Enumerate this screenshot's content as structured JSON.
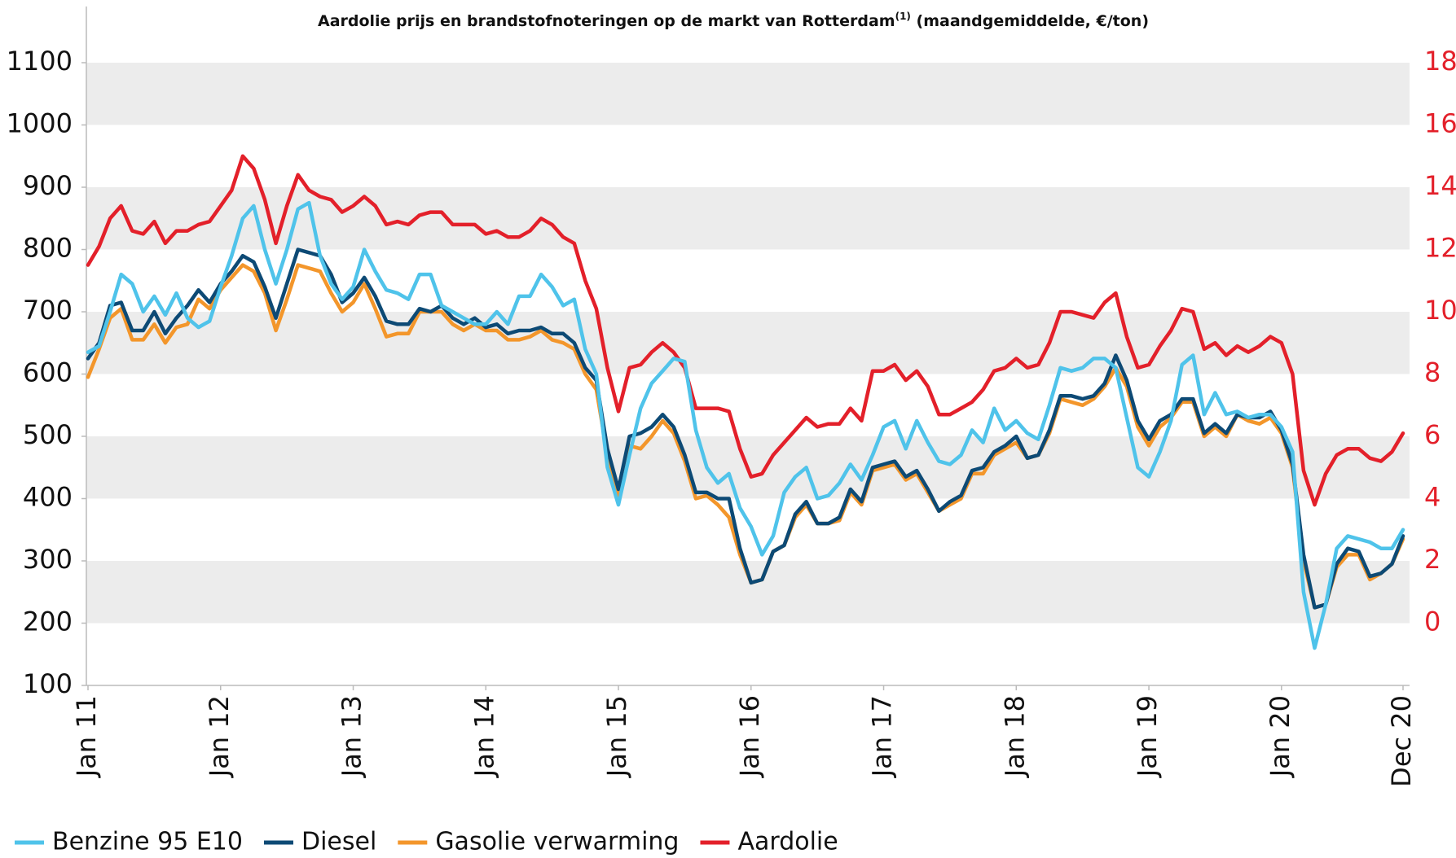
{
  "chart_data": {
    "type": "line",
    "title": "Aardolie prijs en brandstofnoteringen op de markt van Rotterdam",
    "title_note": "(1)",
    "title_suffix": " (maandgemiddelde, €/ton)",
    "categories": [
      "Jan 11",
      null,
      null,
      null,
      null,
      null,
      null,
      null,
      null,
      null,
      null,
      null,
      "Jan 12",
      null,
      null,
      null,
      null,
      null,
      null,
      null,
      null,
      null,
      null,
      null,
      "Jan 13",
      null,
      null,
      null,
      null,
      null,
      null,
      null,
      null,
      null,
      null,
      null,
      "Jan 14",
      null,
      null,
      null,
      null,
      null,
      null,
      null,
      null,
      null,
      null,
      null,
      "Jan 15",
      null,
      null,
      null,
      null,
      null,
      null,
      null,
      null,
      null,
      null,
      null,
      "Jan 16",
      null,
      null,
      null,
      null,
      null,
      null,
      null,
      null,
      null,
      null,
      null,
      "Jan 17",
      null,
      null,
      null,
      null,
      null,
      null,
      null,
      null,
      null,
      null,
      null,
      "Jan 18",
      null,
      null,
      null,
      null,
      null,
      null,
      null,
      null,
      null,
      null,
      null,
      "Jan 19",
      null,
      null,
      null,
      null,
      null,
      null,
      null,
      null,
      null,
      null,
      null,
      "Jan 20",
      null,
      null,
      null,
      null,
      null,
      null,
      null,
      null,
      null,
      null,
      "Dec 20"
    ],
    "ylim": [
      100,
      1100
    ],
    "yticks": [
      100,
      200,
      300,
      400,
      500,
      600,
      700,
      800,
      900,
      1000,
      1100
    ],
    "y2lim": [
      -2,
      18
    ],
    "y2ticks": [
      0,
      2,
      4,
      6,
      8,
      10,
      12,
      14,
      16,
      18
    ],
    "y2color": "#e3202a",
    "grid": "bands",
    "legend": "bottom-left",
    "series": [
      {
        "name": "Benzine 95 E10",
        "color": "#4fc3ea",
        "values": [
          635,
          645,
          700,
          760,
          745,
          700,
          725,
          695,
          730,
          690,
          675,
          685,
          740,
          790,
          850,
          870,
          800,
          745,
          800,
          865,
          875,
          790,
          745,
          720,
          740,
          800,
          765,
          735,
          730,
          720,
          760,
          760,
          710,
          700,
          690,
          680,
          680,
          700,
          680,
          725,
          725,
          760,
          740,
          710,
          720,
          640,
          600,
          450,
          390,
          470,
          545,
          585,
          605,
          625,
          620,
          510,
          450,
          425,
          440,
          385,
          355,
          310,
          340,
          410,
          435,
          450,
          400,
          405,
          425,
          455,
          430,
          470,
          515,
          525,
          480,
          525,
          490,
          460,
          455,
          470,
          510,
          490,
          545,
          510,
          525,
          505,
          495,
          550,
          610,
          605,
          610,
          625,
          625,
          610,
          530,
          450,
          435,
          475,
          525,
          615,
          630,
          535,
          570,
          535,
          540,
          530,
          535,
          535,
          515,
          475,
          250,
          160,
          230,
          320,
          340,
          335,
          330,
          320,
          320,
          350
        ]
      },
      {
        "name": "Diesel",
        "color": "#0d4a75",
        "values": [
          625,
          650,
          710,
          715,
          670,
          670,
          700,
          665,
          690,
          710,
          735,
          715,
          745,
          765,
          790,
          780,
          740,
          690,
          745,
          800,
          795,
          790,
          760,
          715,
          730,
          755,
          725,
          685,
          680,
          680,
          705,
          700,
          710,
          690,
          680,
          690,
          675,
          680,
          665,
          670,
          670,
          675,
          665,
          665,
          650,
          610,
          590,
          480,
          415,
          500,
          505,
          515,
          535,
          515,
          470,
          410,
          410,
          400,
          400,
          320,
          265,
          270,
          315,
          325,
          375,
          395,
          360,
          360,
          370,
          415,
          395,
          450,
          455,
          460,
          435,
          445,
          415,
          380,
          395,
          405,
          445,
          450,
          475,
          485,
          500,
          465,
          470,
          510,
          565,
          565,
          560,
          565,
          585,
          630,
          590,
          525,
          495,
          525,
          535,
          560,
          560,
          505,
          520,
          505,
          535,
          530,
          530,
          540,
          510,
          455,
          310,
          225,
          230,
          295,
          320,
          315,
          275,
          280,
          295,
          340
        ]
      },
      {
        "name": "Gasolie verwarming",
        "color": "#f3962b",
        "values": [
          595,
          640,
          690,
          705,
          655,
          655,
          680,
          650,
          675,
          680,
          720,
          705,
          735,
          755,
          775,
          765,
          730,
          670,
          720,
          775,
          770,
          765,
          730,
          700,
          715,
          745,
          705,
          660,
          665,
          665,
          700,
          700,
          700,
          680,
          670,
          680,
          670,
          670,
          655,
          655,
          660,
          670,
          655,
          650,
          640,
          600,
          575,
          470,
          400,
          485,
          480,
          500,
          525,
          505,
          460,
          400,
          405,
          390,
          370,
          310,
          265,
          270,
          315,
          325,
          370,
          390,
          360,
          360,
          365,
          410,
          390,
          445,
          450,
          455,
          430,
          440,
          410,
          380,
          390,
          400,
          440,
          440,
          470,
          480,
          490,
          465,
          470,
          505,
          560,
          555,
          550,
          560,
          580,
          610,
          580,
          515,
          485,
          515,
          530,
          555,
          555,
          500,
          515,
          500,
          535,
          525,
          520,
          530,
          505,
          450,
          300,
          225,
          230,
          290,
          310,
          310,
          270,
          280,
          295,
          335
        ]
      },
      {
        "name": "Aardolie",
        "color": "#e3202a",
        "axis": "y2",
        "values": [
          11.5,
          12.1,
          13.0,
          13.4,
          12.6,
          12.5,
          12.9,
          12.2,
          12.6,
          12.6,
          12.8,
          12.9,
          13.4,
          13.9,
          15.0,
          14.6,
          13.6,
          12.2,
          13.4,
          14.4,
          13.9,
          13.7,
          13.6,
          13.2,
          13.4,
          13.7,
          13.4,
          12.8,
          12.9,
          12.8,
          13.1,
          13.2,
          13.2,
          12.8,
          12.8,
          12.8,
          12.5,
          12.6,
          12.4,
          12.4,
          12.6,
          13.0,
          12.8,
          12.4,
          12.2,
          11.0,
          10.1,
          8.2,
          6.8,
          8.2,
          8.3,
          8.7,
          9.0,
          8.7,
          8.2,
          6.9,
          6.9,
          6.9,
          6.8,
          5.6,
          4.7,
          4.8,
          5.4,
          5.8,
          6.2,
          6.6,
          6.3,
          6.4,
          6.4,
          6.9,
          6.5,
          8.1,
          8.1,
          8.3,
          7.8,
          8.1,
          7.6,
          6.7,
          6.7,
          6.9,
          7.1,
          7.5,
          8.1,
          8.2,
          8.5,
          8.2,
          8.3,
          9.0,
          10.0,
          10.0,
          9.9,
          9.8,
          10.3,
          10.6,
          9.2,
          8.2,
          8.3,
          8.9,
          9.4,
          10.1,
          10.0,
          8.8,
          9.0,
          8.6,
          8.9,
          8.7,
          8.9,
          9.2,
          9.0,
          8.0,
          4.9,
          3.8,
          4.8,
          5.4,
          5.6,
          5.6,
          5.3,
          5.2,
          5.5,
          6.1
        ]
      }
    ]
  }
}
